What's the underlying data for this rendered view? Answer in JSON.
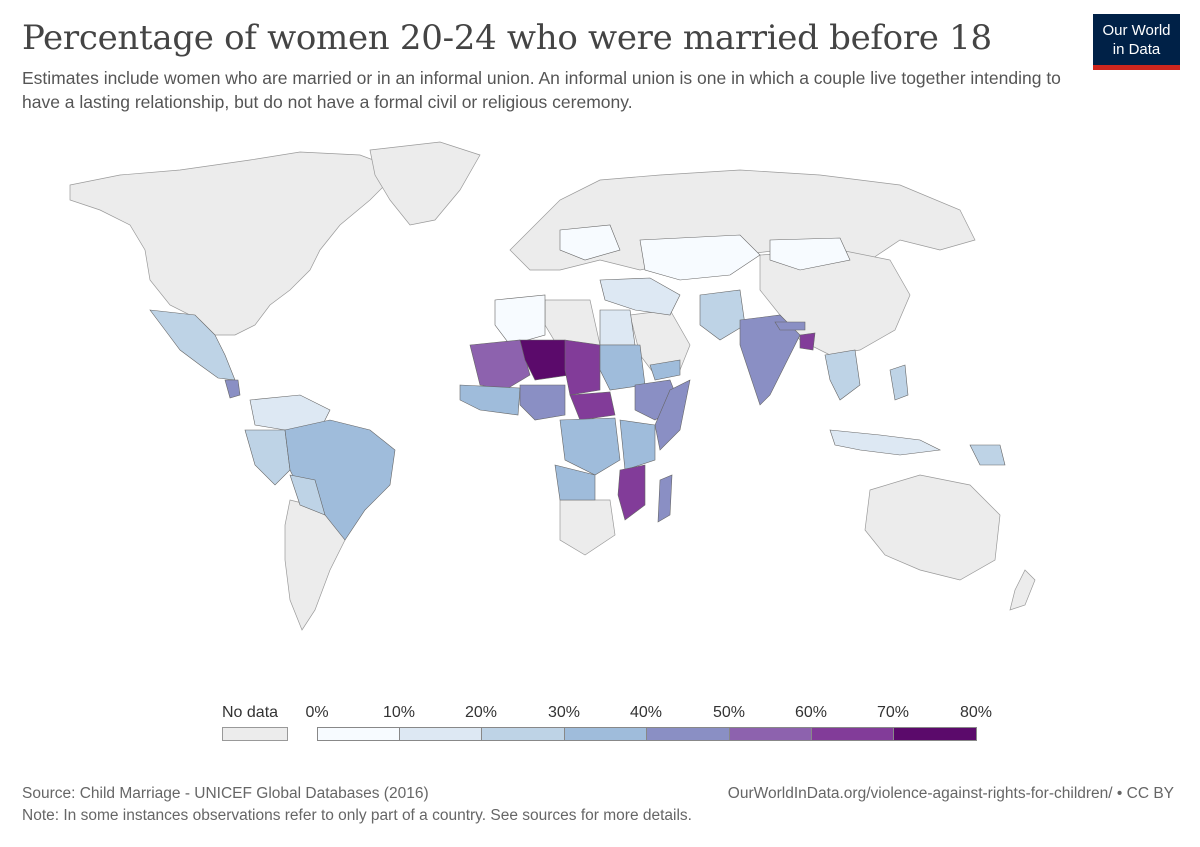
{
  "header": {
    "title": "Percentage of women 20-24 who were married before 18",
    "subtitle": "Estimates include women who are married or in an informal union. An informal union is one in which a couple live together intending to have a lasting relationship, but do not have a formal civil or religious ceremony."
  },
  "logo": {
    "line1": "Our World",
    "line2": "in Data",
    "bg": "#002147",
    "accent": "#ce261e"
  },
  "legend": {
    "no_data_label": "No data",
    "no_data_color": "#ececec",
    "tick_labels": [
      "0%",
      "10%",
      "20%",
      "30%",
      "40%",
      "50%",
      "60%",
      "70%",
      "80%"
    ],
    "bin_colors": [
      "#f7fbff",
      "#dde8f3",
      "#bed3e6",
      "#9fbcdb",
      "#8a8fc4",
      "#8d62ae",
      "#823c99",
      "#5b0a6b"
    ]
  },
  "regions": [
    {
      "name": "Niger",
      "value_pct": 76
    },
    {
      "name": "Chad",
      "value_pct": 68
    },
    {
      "name": "Central African Republic",
      "value_pct": 68
    },
    {
      "name": "Mali",
      "value_pct": 55
    },
    {
      "name": "Bangladesh",
      "value_pct": 59
    },
    {
      "name": "South Sudan",
      "value_pct": 52
    },
    {
      "name": "Mozambique",
      "value_pct": 48
    },
    {
      "name": "Malawi",
      "value_pct": 50
    },
    {
      "name": "Nigeria",
      "value_pct": 43
    },
    {
      "name": "Ethiopia",
      "value_pct": 40
    },
    {
      "name": "India",
      "value_pct": 47
    },
    {
      "name": "Madagascar",
      "value_pct": 41
    },
    {
      "name": "Somalia",
      "value_pct": 45
    },
    {
      "name": "Sudan",
      "value_pct": 34
    },
    {
      "name": "DR Congo",
      "value_pct": 37
    },
    {
      "name": "Brazil",
      "value_pct": 36
    },
    {
      "name": "Nicaragua",
      "value_pct": 41
    },
    {
      "name": "Mexico",
      "value_pct": 26
    },
    {
      "name": "Afghanistan",
      "value_pct": 35
    },
    {
      "name": "Pakistan",
      "value_pct": 21
    },
    {
      "name": "Iran",
      "value_pct": 17
    },
    {
      "name": "Indonesia",
      "value_pct": 14
    },
    {
      "name": "Thailand",
      "value_pct": 22
    },
    {
      "name": "Peru",
      "value_pct": 22
    },
    {
      "name": "Egypt",
      "value_pct": 17
    },
    {
      "name": "Algeria",
      "value_pct": 3
    },
    {
      "name": "Kazakhstan",
      "value_pct": 7
    },
    {
      "name": "Mongolia",
      "value_pct": 5
    }
  ],
  "footer": {
    "source": "Source: Child Marriage - UNICEF Global Databases (2016)",
    "url": "OurWorldInData.org/violence-against-rights-for-children/ • CC BY",
    "note": "Note: In some instances observations refer to only part of a country. See sources for more details."
  }
}
